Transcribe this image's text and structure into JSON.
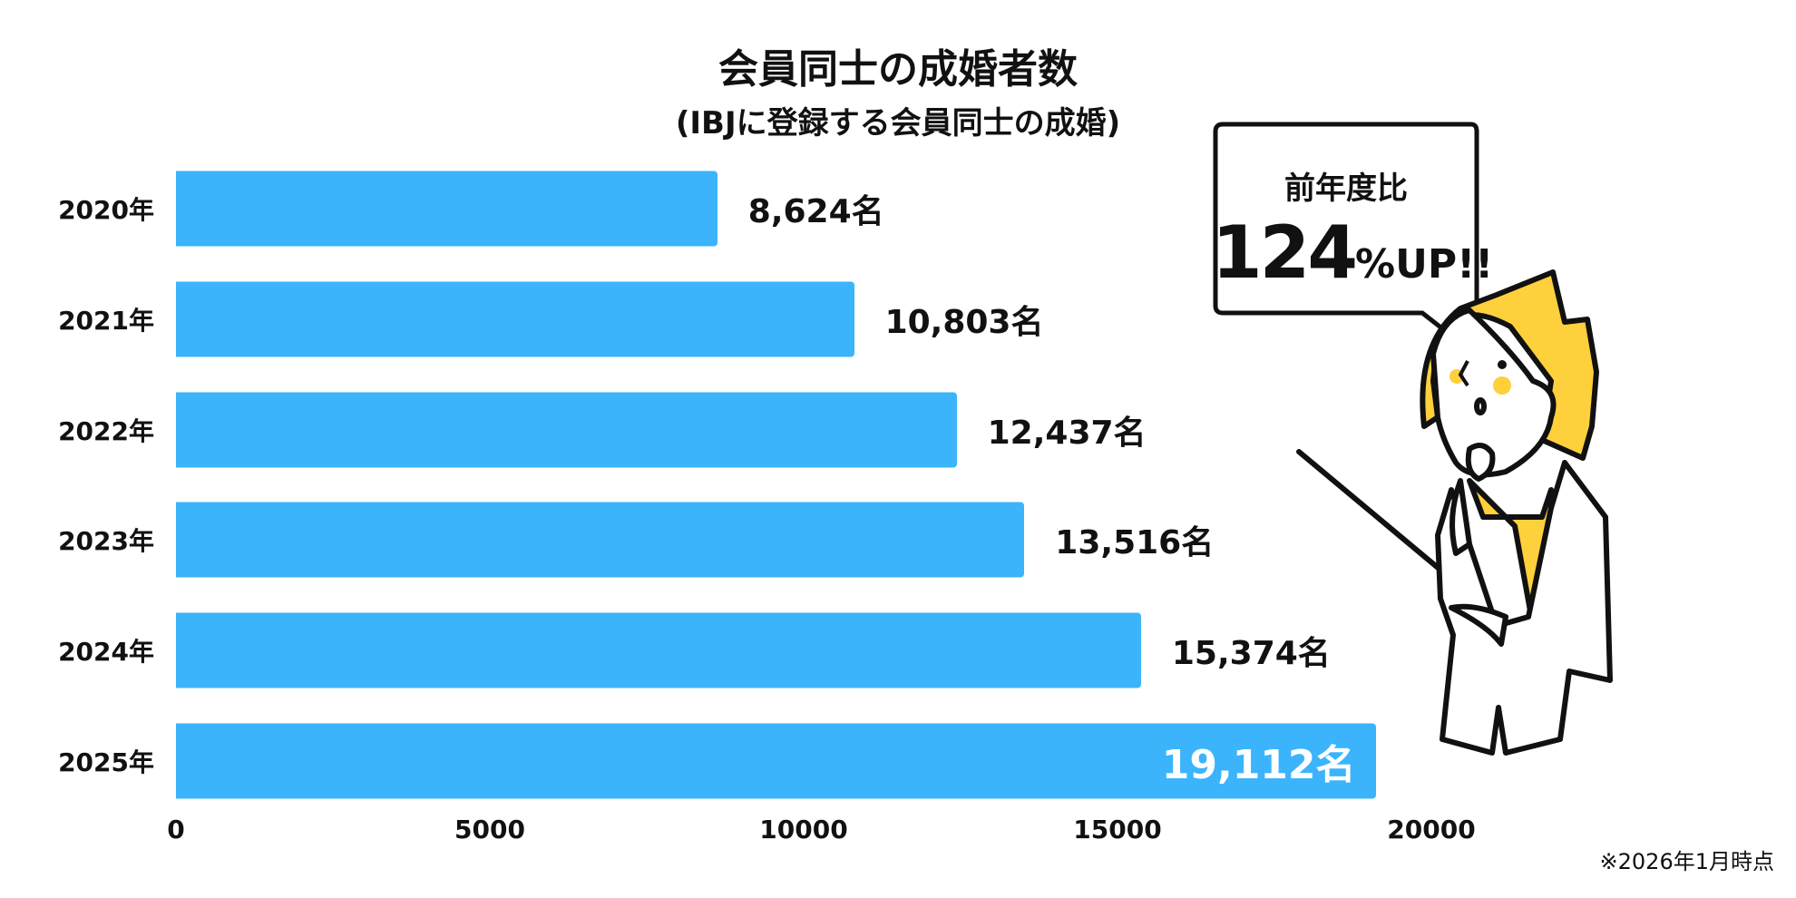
{
  "chart_data": {
    "type": "bar",
    "orientation": "horizontal",
    "title": "会員同士の成婚者数",
    "subtitle": "(IBJに登録する会員同士の成婚)",
    "categories": [
      "2020年",
      "2021年",
      "2022年",
      "2023年",
      "2024年",
      "2025年"
    ],
    "values": [
      8624,
      10803,
      12437,
      13516,
      15374,
      19112
    ],
    "value_labels": [
      "8,624名",
      "10,803名",
      "12,437名",
      "13,516名",
      "15,374名",
      "19,112名"
    ],
    "xlim": [
      0,
      20000
    ],
    "xticks": [
      "0",
      "5000",
      "10000",
      "15000",
      "20000"
    ],
    "bar_color": "#3bb4fc",
    "grid": false,
    "note": "※2026年1月時点"
  },
  "callout": {
    "line1": "前年度比",
    "number": "124",
    "suffix": "%UP!!"
  }
}
